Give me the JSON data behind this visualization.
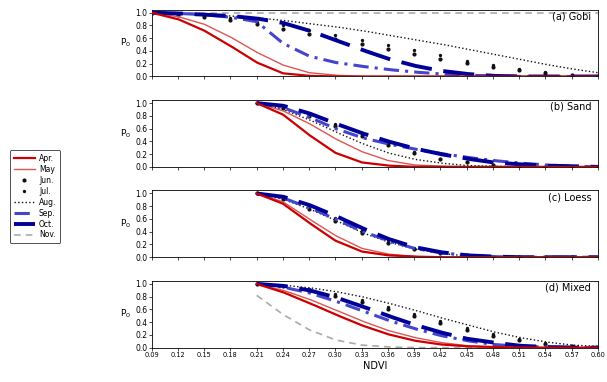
{
  "ndvi_ticks": [
    0.09,
    0.12,
    0.15,
    0.18,
    0.21,
    0.24,
    0.27,
    0.3,
    0.33,
    0.36,
    0.39,
    0.42,
    0.45,
    0.48,
    0.51,
    0.54,
    0.57,
    0.6
  ],
  "panels": [
    "(a) Gobi",
    "(b) Sand",
    "(c) Loess",
    "(d) Mixed"
  ],
  "months": [
    "Apr.",
    "May",
    "Jun.",
    "Jul.",
    "Aug.",
    "Sep.",
    "Oct.",
    "Nov."
  ],
  "gobi": [
    [
      1.0,
      0.9,
      0.72,
      0.48,
      0.22,
      0.05,
      0.01,
      0.0,
      0.0,
      0.0,
      0.0,
      0.0,
      0.0,
      0.0,
      0.0,
      0.0,
      0.0,
      0.0
    ],
    [
      1.0,
      0.94,
      0.82,
      0.62,
      0.38,
      0.18,
      0.06,
      0.02,
      0.0,
      0.0,
      0.0,
      0.0,
      0.0,
      0.0,
      0.0,
      0.0,
      0.0,
      0.0
    ],
    [
      1.0,
      0.97,
      0.93,
      0.88,
      0.82,
      0.75,
      0.67,
      0.59,
      0.51,
      0.43,
      0.35,
      0.28,
      0.21,
      0.15,
      0.1,
      0.06,
      0.03,
      0.01
    ],
    [
      1.0,
      0.98,
      0.95,
      0.91,
      0.86,
      0.8,
      0.73,
      0.65,
      0.57,
      0.49,
      0.41,
      0.33,
      0.25,
      0.18,
      0.12,
      0.07,
      0.03,
      0.01
    ],
    [
      1.0,
      0.99,
      0.97,
      0.95,
      0.92,
      0.88,
      0.83,
      0.78,
      0.72,
      0.65,
      0.58,
      0.51,
      0.43,
      0.35,
      0.27,
      0.19,
      0.12,
      0.06
    ],
    [
      1.0,
      0.99,
      0.97,
      0.93,
      0.86,
      0.52,
      0.32,
      0.22,
      0.16,
      0.11,
      0.07,
      0.04,
      0.02,
      0.01,
      0.0,
      0.0,
      0.0,
      0.0
    ],
    [
      1.0,
      0.99,
      0.97,
      0.95,
      0.91,
      0.84,
      0.72,
      0.57,
      0.42,
      0.28,
      0.17,
      0.09,
      0.04,
      0.01,
      0.0,
      0.0,
      0.0,
      0.0
    ],
    [
      1.0,
      1.0,
      1.0,
      1.0,
      1.0,
      1.0,
      1.0,
      1.0,
      1.0,
      1.0,
      1.0,
      1.0,
      1.0,
      1.0,
      1.0,
      1.0,
      1.0,
      1.0
    ]
  ],
  "sand": [
    [
      0.0,
      0.0,
      0.0,
      0.0,
      1.0,
      0.82,
      0.5,
      0.22,
      0.07,
      0.02,
      0.0,
      0.0,
      0.0,
      0.0,
      0.0,
      0.0,
      0.0,
      0.0
    ],
    [
      0.0,
      0.0,
      0.0,
      0.0,
      1.0,
      0.88,
      0.68,
      0.44,
      0.24,
      0.1,
      0.03,
      0.01,
      0.0,
      0.0,
      0.0,
      0.0,
      0.0,
      0.0
    ],
    [
      0.0,
      0.0,
      0.0,
      0.0,
      1.0,
      0.93,
      0.8,
      0.64,
      0.48,
      0.34,
      0.22,
      0.13,
      0.07,
      0.03,
      0.01,
      0.0,
      0.0,
      0.0
    ],
    [
      0.0,
      0.0,
      0.0,
      0.0,
      1.0,
      0.94,
      0.82,
      0.67,
      0.51,
      0.36,
      0.23,
      0.13,
      0.07,
      0.03,
      0.01,
      0.0,
      0.0,
      0.0
    ],
    [
      0.0,
      0.0,
      0.0,
      0.0,
      1.0,
      0.9,
      0.74,
      0.55,
      0.37,
      0.22,
      0.12,
      0.06,
      0.02,
      0.01,
      0.0,
      0.0,
      0.0,
      0.0
    ],
    [
      0.0,
      0.0,
      0.0,
      0.0,
      1.0,
      0.93,
      0.78,
      0.6,
      0.46,
      0.36,
      0.28,
      0.21,
      0.15,
      0.1,
      0.06,
      0.03,
      0.01,
      0.0
    ],
    [
      0.0,
      0.0,
      0.0,
      0.0,
      1.0,
      0.96,
      0.84,
      0.68,
      0.53,
      0.4,
      0.29,
      0.2,
      0.13,
      0.07,
      0.04,
      0.02,
      0.01,
      0.0
    ],
    [
      0.0,
      0.0,
      0.0,
      0.0,
      0.0,
      0.0,
      0.0,
      0.0,
      0.0,
      0.0,
      0.0,
      0.0,
      0.0,
      0.0,
      0.0,
      0.0,
      0.0,
      0.0
    ]
  ],
  "loess": [
    [
      0.0,
      0.0,
      0.0,
      0.0,
      1.0,
      0.84,
      0.54,
      0.26,
      0.09,
      0.03,
      0.01,
      0.0,
      0.0,
      0.0,
      0.0,
      0.0,
      0.0,
      0.0
    ],
    [
      0.0,
      0.0,
      0.0,
      0.0,
      1.0,
      0.87,
      0.6,
      0.34,
      0.14,
      0.05,
      0.01,
      0.0,
      0.0,
      0.0,
      0.0,
      0.0,
      0.0,
      0.0
    ],
    [
      0.0,
      0.0,
      0.0,
      0.0,
      1.0,
      0.92,
      0.76,
      0.57,
      0.38,
      0.23,
      0.13,
      0.06,
      0.03,
      0.01,
      0.0,
      0.0,
      0.0,
      0.0
    ],
    [
      0.0,
      0.0,
      0.0,
      0.0,
      1.0,
      0.94,
      0.8,
      0.62,
      0.43,
      0.27,
      0.15,
      0.07,
      0.03,
      0.01,
      0.0,
      0.0,
      0.0,
      0.0
    ],
    [
      0.0,
      0.0,
      0.0,
      0.0,
      1.0,
      0.91,
      0.76,
      0.58,
      0.39,
      0.24,
      0.13,
      0.06,
      0.02,
      0.01,
      0.0,
      0.0,
      0.0,
      0.0
    ],
    [
      0.0,
      0.0,
      0.0,
      0.0,
      1.0,
      0.93,
      0.78,
      0.6,
      0.41,
      0.26,
      0.14,
      0.07,
      0.03,
      0.01,
      0.0,
      0.0,
      0.0,
      0.0
    ],
    [
      0.0,
      0.0,
      0.0,
      0.0,
      1.0,
      0.95,
      0.82,
      0.65,
      0.46,
      0.29,
      0.16,
      0.08,
      0.03,
      0.01,
      0.0,
      0.0,
      0.0,
      0.0
    ],
    [
      0.0,
      0.0,
      0.0,
      0.0,
      0.0,
      0.0,
      0.0,
      0.0,
      0.0,
      0.0,
      0.0,
      0.0,
      0.0,
      0.0,
      0.0,
      0.0,
      0.0,
      0.0
    ]
  ],
  "mixed": [
    [
      0.0,
      0.0,
      0.0,
      0.0,
      1.0,
      0.87,
      0.7,
      0.52,
      0.35,
      0.21,
      0.11,
      0.05,
      0.02,
      0.01,
      0.0,
      0.0,
      0.0,
      0.0
    ],
    [
      0.0,
      0.0,
      0.0,
      0.0,
      1.0,
      0.9,
      0.76,
      0.59,
      0.42,
      0.27,
      0.16,
      0.08,
      0.03,
      0.01,
      0.0,
      0.0,
      0.0,
      0.0
    ],
    [
      0.0,
      0.0,
      0.0,
      0.0,
      1.0,
      0.96,
      0.89,
      0.81,
      0.71,
      0.6,
      0.49,
      0.38,
      0.28,
      0.19,
      0.12,
      0.06,
      0.03,
      0.01
    ],
    [
      0.0,
      0.0,
      0.0,
      0.0,
      1.0,
      0.97,
      0.92,
      0.84,
      0.75,
      0.64,
      0.53,
      0.42,
      0.31,
      0.21,
      0.13,
      0.07,
      0.03,
      0.01
    ],
    [
      0.0,
      0.0,
      0.0,
      0.0,
      1.0,
      0.98,
      0.94,
      0.88,
      0.8,
      0.7,
      0.59,
      0.47,
      0.36,
      0.25,
      0.16,
      0.09,
      0.04,
      0.02
    ],
    [
      0.0,
      0.0,
      0.0,
      0.0,
      1.0,
      0.95,
      0.86,
      0.73,
      0.58,
      0.43,
      0.3,
      0.19,
      0.11,
      0.05,
      0.02,
      0.01,
      0.0,
      0.0
    ],
    [
      0.0,
      0.0,
      0.0,
      0.0,
      1.0,
      0.97,
      0.9,
      0.79,
      0.65,
      0.5,
      0.36,
      0.24,
      0.14,
      0.08,
      0.03,
      0.01,
      0.0,
      0.0
    ],
    [
      0.0,
      0.0,
      0.0,
      0.0,
      0.82,
      0.52,
      0.28,
      0.12,
      0.04,
      0.01,
      0.0,
      0.0,
      0.0,
      0.0,
      0.0,
      0.0,
      0.0,
      0.0
    ]
  ]
}
